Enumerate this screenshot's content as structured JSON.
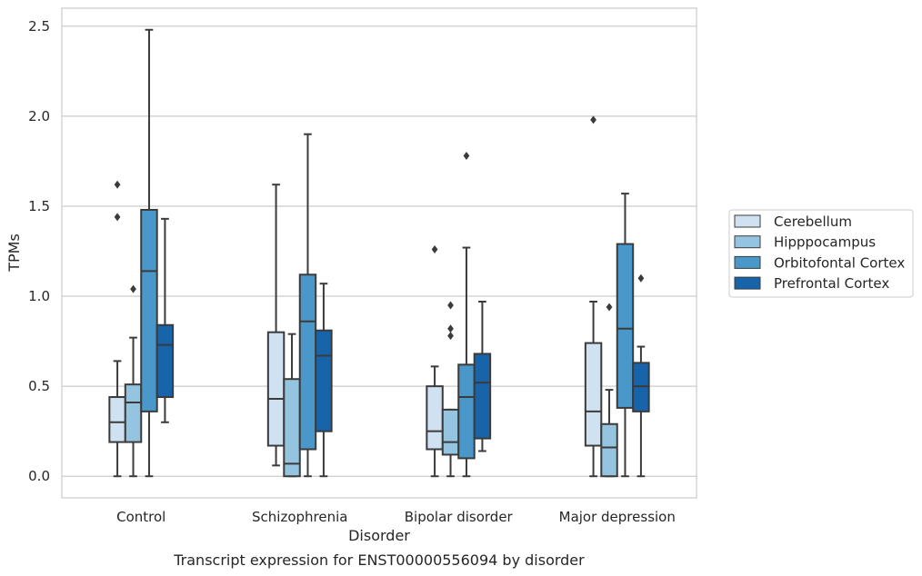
{
  "chart_data": {
    "type": "box",
    "categories": [
      "Control",
      "Schizophrenia",
      "Bipolar disorder",
      "Major depression"
    ],
    "xlabel": "Disorder",
    "ylabel": "TPMs",
    "caption": "Transcript expression for ENST00000556094 by disorder",
    "ylim": [
      -0.12,
      2.6
    ],
    "yticks": [
      "0.0",
      "0.5",
      "1.0",
      "1.5",
      "2.0",
      "2.5"
    ],
    "grid": "horizontal",
    "legend_position": "right",
    "series": [
      {
        "name": "Cerebellum",
        "color": "#d0e1f2",
        "boxes": [
          {
            "whisker_low": 0.0,
            "q1": 0.19,
            "median": 0.3,
            "q3": 0.44,
            "whisker_high": 0.64,
            "outliers": [
              1.44,
              1.62
            ]
          },
          {
            "whisker_low": 0.06,
            "q1": 0.17,
            "median": 0.43,
            "q3": 0.8,
            "whisker_high": 1.62,
            "outliers": []
          },
          {
            "whisker_low": 0.0,
            "q1": 0.15,
            "median": 0.25,
            "q3": 0.5,
            "whisker_high": 0.61,
            "outliers": [
              1.26
            ]
          },
          {
            "whisker_low": 0.0,
            "q1": 0.17,
            "median": 0.36,
            "q3": 0.74,
            "whisker_high": 0.97,
            "outliers": [
              1.98
            ]
          }
        ]
      },
      {
        "name": "Hipppocampus",
        "color": "#94c4df",
        "boxes": [
          {
            "whisker_low": 0.0,
            "q1": 0.19,
            "median": 0.41,
            "q3": 0.51,
            "whisker_high": 0.77,
            "outliers": [
              1.04
            ]
          },
          {
            "whisker_low": 0.0,
            "q1": 0.0,
            "median": 0.07,
            "q3": 0.54,
            "whisker_high": 0.79,
            "outliers": []
          },
          {
            "whisker_low": 0.0,
            "q1": 0.12,
            "median": 0.19,
            "q3": 0.37,
            "whisker_high": 0.37,
            "outliers": [
              0.78,
              0.82,
              0.95
            ]
          },
          {
            "whisker_low": 0.0,
            "q1": 0.0,
            "median": 0.16,
            "q3": 0.29,
            "whisker_high": 0.48,
            "outliers": [
              0.94
            ]
          }
        ]
      },
      {
        "name": "Orbitofontal Cortex",
        "color": "#4a98c9",
        "boxes": [
          {
            "whisker_low": 0.0,
            "q1": 0.36,
            "median": 1.14,
            "q3": 1.48,
            "whisker_high": 2.48,
            "outliers": []
          },
          {
            "whisker_low": 0.0,
            "q1": 0.15,
            "median": 0.86,
            "q3": 1.12,
            "whisker_high": 1.9,
            "outliers": []
          },
          {
            "whisker_low": 0.0,
            "q1": 0.1,
            "median": 0.44,
            "q3": 0.62,
            "whisker_high": 1.27,
            "outliers": [
              1.78
            ]
          },
          {
            "whisker_low": 0.0,
            "q1": 0.38,
            "median": 0.82,
            "q3": 1.29,
            "whisker_high": 1.57,
            "outliers": []
          }
        ]
      },
      {
        "name": "Prefrontal Cortex",
        "color": "#1764ab",
        "boxes": [
          {
            "whisker_low": 0.3,
            "q1": 0.44,
            "median": 0.73,
            "q3": 0.84,
            "whisker_high": 1.43,
            "outliers": []
          },
          {
            "whisker_low": 0.0,
            "q1": 0.25,
            "median": 0.67,
            "q3": 0.81,
            "whisker_high": 1.07,
            "outliers": []
          },
          {
            "whisker_low": 0.14,
            "q1": 0.21,
            "median": 0.52,
            "q3": 0.68,
            "whisker_high": 0.97,
            "outliers": []
          },
          {
            "whisker_low": 0.0,
            "q1": 0.36,
            "median": 0.5,
            "q3": 0.63,
            "whisker_high": 0.72,
            "outliers": [
              1.1
            ]
          }
        ]
      }
    ]
  }
}
